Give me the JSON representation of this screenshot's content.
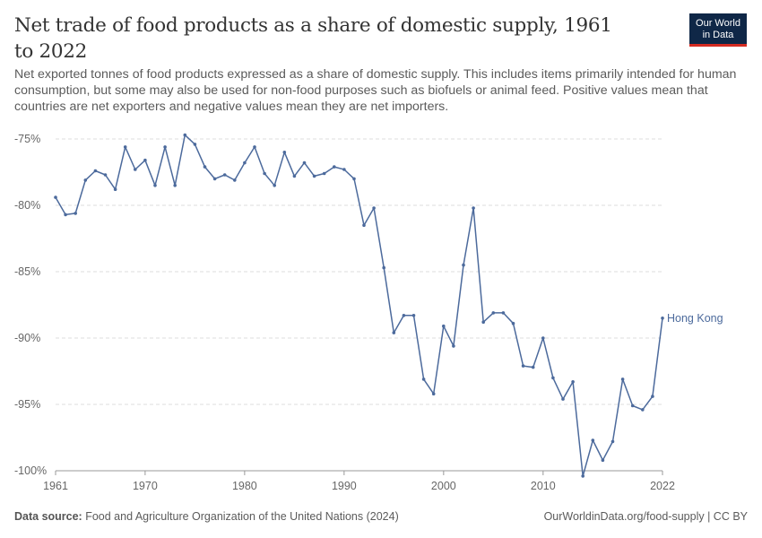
{
  "header": {
    "title": "Net trade of food products as a share of domestic supply, 1961 to 2022",
    "subtitle": "Net exported tonnes of food products expressed as a share of domestic supply. This includes items primarily intended for human consumption, but some may also be used for non-food purposes such as biofuels or animal feed. Positive values mean that countries are net exporters and negative values mean they are net importers."
  },
  "logo": {
    "line1": "Our World",
    "line2": "in Data"
  },
  "footer": {
    "source_label": "Data source:",
    "source_text": "Food and Agriculture Organization of the United Nations (2024)",
    "right_text": "OurWorldinData.org/food-supply | CC BY"
  },
  "colors": {
    "series": "#4c6a9c",
    "grid": "#dddddd",
    "text": "#666666"
  },
  "chart_data": {
    "type": "line",
    "xlim": [
      1961,
      2022
    ],
    "ylim": [
      -100,
      -75
    ],
    "x_ticks": [
      1961,
      1970,
      1980,
      1990,
      2000,
      2010,
      2022
    ],
    "y_ticks": [
      -75,
      -80,
      -85,
      -90,
      -95,
      -100
    ],
    "y_tick_suffix": "%",
    "grid": "horizontal dashed",
    "series": [
      {
        "name": "Hong Kong",
        "x": [
          1961,
          1962,
          1963,
          1964,
          1965,
          1966,
          1967,
          1968,
          1969,
          1970,
          1971,
          1972,
          1973,
          1974,
          1975,
          1976,
          1977,
          1978,
          1979,
          1980,
          1981,
          1982,
          1983,
          1984,
          1985,
          1986,
          1987,
          1988,
          1989,
          1990,
          1991,
          1992,
          1993,
          1994,
          1995,
          1996,
          1997,
          1998,
          1999,
          2000,
          2001,
          2002,
          2003,
          2004,
          2005,
          2006,
          2007,
          2008,
          2009,
          2010,
          2011,
          2012,
          2013,
          2014,
          2015,
          2016,
          2017,
          2018,
          2019,
          2020,
          2021,
          2022
        ],
        "values": [
          -79.4,
          -80.7,
          -80.6,
          -78.1,
          -77.4,
          -77.7,
          -78.8,
          -75.6,
          -77.3,
          -76.6,
          -78.5,
          -75.6,
          -78.5,
          -74.7,
          -75.4,
          -77.1,
          -78.0,
          -77.7,
          -78.1,
          -76.8,
          -75.6,
          -77.6,
          -78.5,
          -76.0,
          -77.8,
          -76.8,
          -77.8,
          -77.6,
          -77.1,
          -77.3,
          -78.0,
          -81.5,
          -80.2,
          -84.7,
          -89.6,
          -88.3,
          -88.3,
          -93.1,
          -94.2,
          -89.1,
          -90.6,
          -84.5,
          -80.2,
          -88.8,
          -88.1,
          -88.1,
          -88.9,
          -92.1,
          -92.2,
          -90.0,
          -93.0,
          -94.6,
          -93.3,
          -100.4,
          -97.7,
          -99.2,
          -97.8,
          -93.1,
          -95.1,
          -95.4,
          -94.4,
          -88.5
        ]
      }
    ]
  }
}
